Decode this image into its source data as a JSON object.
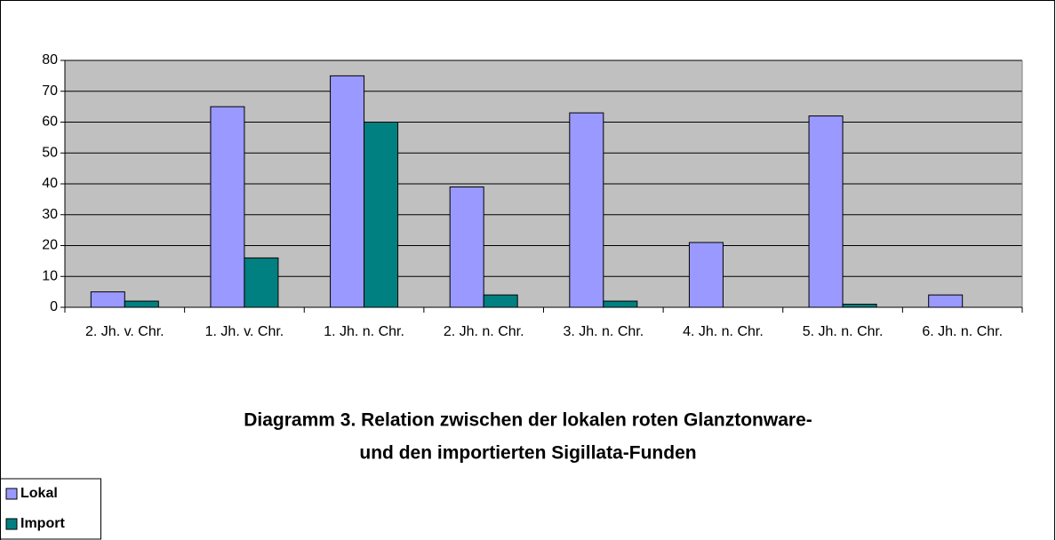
{
  "chart_data": {
    "type": "bar",
    "title": [
      "Diagramm 3. Relation zwischen der lokalen roten Glanztonware-",
      "und den importierten Sigillata-Funden"
    ],
    "categories": [
      "2. Jh. v. Chr.",
      "1. Jh. v. Chr.",
      "1. Jh. n. Chr.",
      "2. Jh. n. Chr.",
      "3. Jh. n. Chr.",
      "4. Jh. n. Chr.",
      "5. Jh. n. Chr.",
      "6. Jh. n. Chr."
    ],
    "series": [
      {
        "name": "Lokal",
        "color": "#9999ff",
        "values": [
          5,
          65,
          75,
          39,
          63,
          21,
          62,
          4
        ]
      },
      {
        "name": "Import",
        "color": "#008080",
        "values": [
          2,
          16,
          60,
          4,
          2,
          0,
          1,
          0
        ]
      }
    ],
    "ylim": [
      0,
      80
    ],
    "yticks": [
      0,
      10,
      20,
      30,
      40,
      50,
      60,
      70,
      80
    ],
    "grid": true,
    "legend": "bottom-left"
  }
}
